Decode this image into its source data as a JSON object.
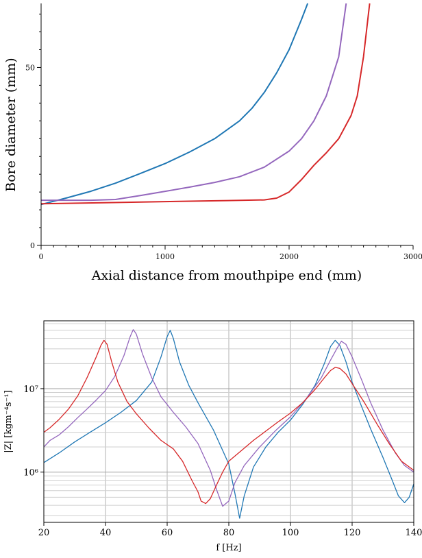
{
  "chart_data": [
    {
      "type": "line",
      "title": "",
      "xlabel": "Axial distance from mouthpipe end (mm)",
      "ylabel": "Bore diameter (mm)",
      "xlim": [
        0,
        3000
      ],
      "ylim": [
        0,
        68
      ],
      "xticks": [
        "0",
        "1000",
        "2000",
        "3000"
      ],
      "yticks": [
        "0",
        "50"
      ],
      "grid": false,
      "legend": "none",
      "series": [
        {
          "color": "#1f77b4",
          "x": [
            0,
            200,
            400,
            600,
            800,
            1000,
            1200,
            1400,
            1600,
            1700,
            1800,
            1900,
            2000,
            2100,
            2150
          ],
          "y": [
            11.5,
            13.3,
            15.2,
            17.5,
            20.2,
            23.0,
            26.3,
            30.0,
            35.0,
            38.5,
            43.0,
            48.5,
            55.0,
            63.5,
            69.0
          ]
        },
        {
          "color": "#9467bd",
          "x": [
            0,
            200,
            400,
            600,
            800,
            1000,
            1200,
            1400,
            1600,
            1800,
            2000,
            2100,
            2200,
            2300,
            2400,
            2460
          ],
          "y": [
            12.7,
            12.7,
            12.7,
            12.9,
            14.0,
            15.2,
            16.4,
            17.7,
            19.3,
            22.0,
            26.5,
            30.0,
            35.0,
            42.0,
            53.0,
            69.0
          ]
        },
        {
          "color": "#d62728",
          "x": [
            0,
            500,
            1000,
            1500,
            1800,
            1900,
            2000,
            2100,
            2200,
            2300,
            2400,
            2500,
            2550,
            2600,
            2650
          ],
          "y": [
            11.7,
            12.0,
            12.3,
            12.6,
            12.8,
            13.3,
            15.0,
            18.5,
            22.5,
            26.0,
            30.0,
            36.5,
            42.0,
            53.0,
            69.0
          ]
        }
      ]
    },
    {
      "type": "line",
      "title": "",
      "xlabel": "f [Hz]",
      "ylabel": "|Z| [kgm⁻⁴s⁻¹]",
      "xlim": [
        20,
        140
      ],
      "ylim": [
        250000,
        65000000
      ],
      "yscale": "log",
      "xticks": [
        "20",
        "40",
        "60",
        "80",
        "100",
        "120",
        "140"
      ],
      "yticks": [
        "10⁶",
        "10⁷"
      ],
      "grid": true,
      "legend": "none",
      "series": [
        {
          "color": "#1f77b4",
          "x": [
            20,
            25,
            30,
            35,
            40,
            45,
            50,
            55,
            58,
            60,
            61,
            62,
            64,
            67,
            70,
            75,
            80,
            82,
            83.5,
            85,
            88,
            92,
            96,
            100,
            104,
            108,
            111,
            113,
            114.5,
            116,
            118,
            120,
            123,
            126,
            130,
            133,
            135,
            137,
            138.5,
            140
          ],
          "y": [
            1300000,
            1700000,
            2300000,
            3000000,
            3900000,
            5200000,
            7200000,
            12000000,
            24000000,
            42000000,
            50000000,
            40000000,
            21000000,
            11000000,
            6800000,
            3200000,
            1250000,
            550000,
            280000,
            520000,
            1150000,
            2000000,
            3000000,
            4200000,
            6500000,
            11000000,
            20000000,
            32000000,
            38000000,
            33000000,
            21000000,
            12000000,
            6200000,
            3300000,
            1500000,
            800000,
            520000,
            430000,
            500000,
            720000
          ]
        },
        {
          "color": "#9467bd",
          "x": [
            20,
            22,
            25,
            28,
            31,
            34,
            37,
            40,
            43,
            46,
            48,
            49,
            50,
            52,
            55,
            58,
            62,
            66,
            70,
            74,
            76,
            78,
            80,
            82,
            85,
            90,
            95,
            100,
            105,
            110,
            113,
            115,
            116.5,
            118,
            120,
            123,
            126,
            130,
            134,
            137,
            140
          ],
          "y": [
            2000000,
            2400000,
            2800000,
            3500000,
            4500000,
            5700000,
            7300000,
            9500000,
            14000000,
            25000000,
            42000000,
            51000000,
            45000000,
            26000000,
            13500000,
            8000000,
            5200000,
            3500000,
            2200000,
            1050000,
            620000,
            390000,
            450000,
            750000,
            1200000,
            2000000,
            3100000,
            4600000,
            7500000,
            13500000,
            22000000,
            30000000,
            37000000,
            34000000,
            24000000,
            13000000,
            6800000,
            3200000,
            1700000,
            1200000,
            1000000
          ]
        },
        {
          "color": "#d62728",
          "x": [
            20,
            22,
            25,
            28,
            31,
            34,
            37,
            38.5,
            39.5,
            40.5,
            42,
            44,
            47,
            50,
            54,
            58,
            62,
            65,
            68,
            70,
            71,
            72.5,
            74,
            76,
            78,
            80,
            84,
            88,
            92,
            96,
            100,
            104,
            108,
            111,
            113,
            114.5,
            116,
            118,
            120,
            124,
            128,
            132,
            136,
            140
          ],
          "y": [
            3000000,
            3400000,
            4300000,
            5700000,
            8200000,
            13500000,
            24000000,
            33000000,
            38000000,
            34000000,
            21000000,
            12000000,
            7000000,
            5000000,
            3400000,
            2400000,
            1900000,
            1350000,
            800000,
            580000,
            450000,
            420000,
            480000,
            700000,
            1000000,
            1350000,
            1800000,
            2400000,
            3100000,
            4000000,
            5100000,
            6800000,
            9800000,
            13500000,
            16500000,
            18000000,
            17500000,
            15000000,
            11500000,
            6800000,
            3800000,
            2200000,
            1350000,
            1050000
          ]
        }
      ]
    }
  ]
}
